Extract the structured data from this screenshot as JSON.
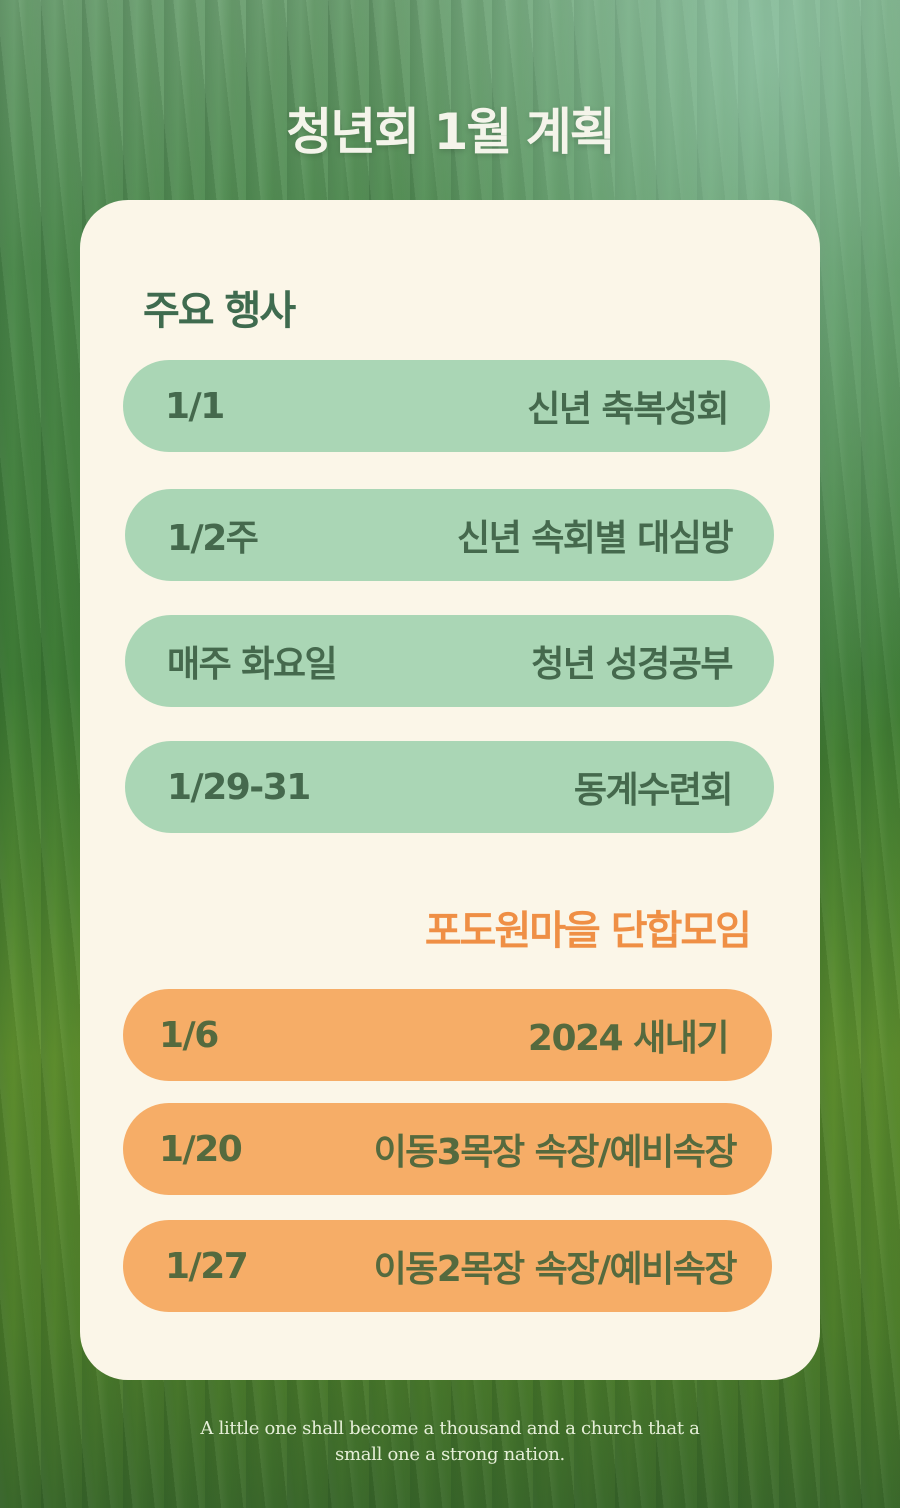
{
  "title": "청년회 1월 계획",
  "main_events": {
    "heading": "주요 행사",
    "items": [
      {
        "date": "1/1",
        "event": "신년 축복성회"
      },
      {
        "date": "1/2주",
        "event": "신년 속회별 대심방"
      },
      {
        "date": "매주 화요일",
        "event": "청년 성경공부"
      },
      {
        "date": "1/29-31",
        "event": "동계수련회"
      }
    ]
  },
  "grape_village": {
    "heading": "포도원마을 단합모임",
    "items": [
      {
        "date": "1/6",
        "event": "2024 새내기"
      },
      {
        "date": "1/20",
        "event": "이동3목장 속장/예비속장"
      },
      {
        "date": "1/27",
        "event": "이동2목장 속장/예비속장"
      }
    ]
  },
  "footer": {
    "line1": "A little one shall become a thousand and a church that a",
    "line2": "small one a strong nation."
  },
  "colors": {
    "card": "#fbf6e8",
    "green_pill": "#aad6b5",
    "orange_pill": "#f6ad67",
    "accent_orange": "#ef8f45",
    "dark_green_text": "#3f6b4f"
  }
}
